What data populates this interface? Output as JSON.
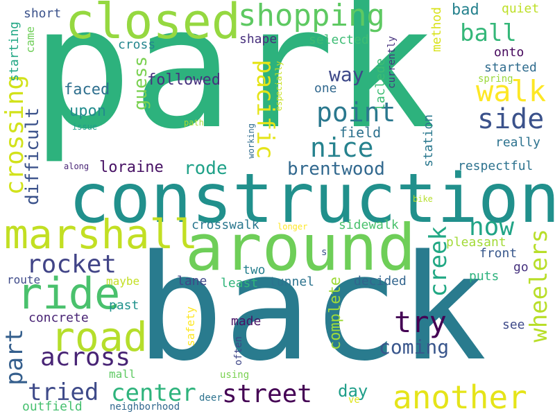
{
  "words": [
    {
      "text": "park",
      "color": "#2db27d"
    },
    {
      "text": "back",
      "color": "#297b8e"
    },
    {
      "text": "construction",
      "color": "#21908c"
    },
    {
      "text": "around",
      "color": "#6ece58"
    },
    {
      "text": "closed",
      "color": "#95d840"
    },
    {
      "text": "shopping",
      "color": "#5ec962"
    },
    {
      "text": "marshall",
      "color": "#c2df23"
    },
    {
      "text": "ride",
      "color": "#4ac16d"
    },
    {
      "text": "road",
      "color": "#b5de2b"
    },
    {
      "text": "another",
      "color": "#e5e419"
    },
    {
      "text": "walk",
      "color": "#fde725"
    },
    {
      "text": "point",
      "color": "#2a788e"
    },
    {
      "text": "nice",
      "color": "#26828e"
    },
    {
      "text": "side",
      "color": "#3b528b"
    },
    {
      "text": "crossing",
      "color": "#d2e21b"
    },
    {
      "text": "pacific",
      "color": "#e5e419"
    },
    {
      "text": "rocket",
      "color": "#414487"
    },
    {
      "text": "across",
      "color": "#482475"
    },
    {
      "text": "street",
      "color": "#440154"
    },
    {
      "text": "center",
      "color": "#2eb37c"
    },
    {
      "text": "tried",
      "color": "#3e4a89"
    },
    {
      "text": "try",
      "color": "#440154"
    },
    {
      "text": "now",
      "color": "#20a486"
    },
    {
      "text": "creek",
      "color": "#22a884"
    },
    {
      "text": "wheelers",
      "color": "#b8de29"
    },
    {
      "text": "part",
      "color": "#355f8d"
    },
    {
      "text": "ball",
      "color": "#35b779"
    },
    {
      "text": "brentwood",
      "color": "#31688e"
    },
    {
      "text": "way",
      "color": "#3e4989"
    },
    {
      "text": "coming",
      "color": "#39568c"
    },
    {
      "text": "difficult",
      "color": "#3b528b"
    },
    {
      "text": "guess",
      "color": "#7ad151"
    },
    {
      "text": "loraine",
      "color": "#471164"
    },
    {
      "text": "rode",
      "color": "#1fa188"
    },
    {
      "text": "complete",
      "color": "#9fda3a"
    },
    {
      "text": "day",
      "color": "#1f9e89"
    },
    {
      "text": "bad",
      "color": "#26828e"
    },
    {
      "text": "quiet",
      "color": "#bddf26"
    },
    {
      "text": "short",
      "color": "#3b528b"
    },
    {
      "text": "starting",
      "color": "#22a785"
    },
    {
      "text": "came",
      "color": "#6ece58"
    },
    {
      "text": "cross",
      "color": "#24868e"
    },
    {
      "text": "shape",
      "color": "#472f7d"
    },
    {
      "text": "selected",
      "color": "#3dbc74"
    },
    {
      "text": "currently",
      "color": "#46327e"
    },
    {
      "text": "method",
      "color": "#d8e219"
    },
    {
      "text": "onto",
      "color": "#46085c"
    },
    {
      "text": "started",
      "color": "#2f6c8e"
    },
    {
      "text": "spring",
      "color": "#9bd93c"
    },
    {
      "text": "laclede",
      "color": "#3dbc74"
    },
    {
      "text": "especially",
      "color": "#c8e020"
    },
    {
      "text": "one",
      "color": "#31688e"
    },
    {
      "text": "followed",
      "color": "#46327e"
    },
    {
      "text": "faced",
      "color": "#2e6f8e"
    },
    {
      "text": "upon",
      "color": "#228c8d"
    },
    {
      "text": "issue",
      "color": "#1f9e89"
    },
    {
      "text": "path",
      "color": "#a8db34"
    },
    {
      "text": "working",
      "color": "#2f6c8e"
    },
    {
      "text": "field",
      "color": "#2c718e"
    },
    {
      "text": "station",
      "color": "#2a788e"
    },
    {
      "text": "really",
      "color": "#2c728e"
    },
    {
      "text": "respectful",
      "color": "#2c728e"
    },
    {
      "text": "along",
      "color": "#482576"
    },
    {
      "text": "bike",
      "color": "#b5de2b"
    },
    {
      "text": "crosswalk",
      "color": "#2a778e"
    },
    {
      "text": "longer",
      "color": "#fde725"
    },
    {
      "text": "sidewalk",
      "color": "#4ac16d"
    },
    {
      "text": "pleasant",
      "color": "#a2da37"
    },
    {
      "text": "front",
      "color": "#38588c"
    },
    {
      "text": "s",
      "color": "#3b528b"
    },
    {
      "text": "two",
      "color": "#277f8e"
    },
    {
      "text": "go",
      "color": "#46327e"
    },
    {
      "text": "route",
      "color": "#3e4a89"
    },
    {
      "text": "maybe",
      "color": "#c2df23"
    },
    {
      "text": "lane",
      "color": "#3f4788"
    },
    {
      "text": "least",
      "color": "#31b57b"
    },
    {
      "text": "tunnel",
      "color": "#2c738e"
    },
    {
      "text": "decided",
      "color": "#32658e"
    },
    {
      "text": "puts",
      "color": "#2db27d"
    },
    {
      "text": "past",
      "color": "#20928c"
    },
    {
      "text": "concrete",
      "color": "#482374"
    },
    {
      "text": "made",
      "color": "#471365"
    },
    {
      "text": "see",
      "color": "#3e4a89"
    },
    {
      "text": "safety",
      "color": "#fde725"
    },
    {
      "text": "often",
      "color": "#3f4788"
    },
    {
      "text": "mall",
      "color": "#5ec962"
    },
    {
      "text": "using",
      "color": "#7ad151"
    },
    {
      "text": "outfield",
      "color": "#46c06f"
    },
    {
      "text": "neighborhood",
      "color": "#31688e"
    },
    {
      "text": "deer",
      "color": "#2c728e"
    },
    {
      "text": "ve",
      "color": "#dde318"
    }
  ]
}
